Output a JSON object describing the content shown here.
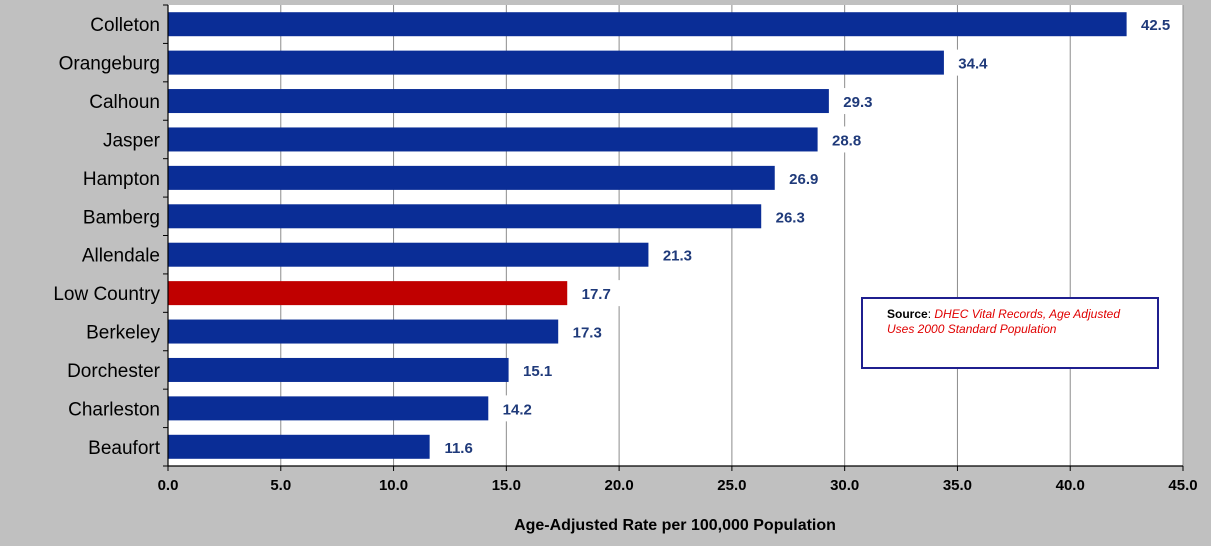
{
  "chart_data": {
    "type": "bar",
    "orientation": "horizontal",
    "categories": [
      "Colleton",
      "Orangeburg",
      "Calhoun",
      "Jasper",
      "Hampton",
      "Bamberg",
      "Allendale",
      "Low Country",
      "Berkeley",
      "Dorchester",
      "Charleston",
      "Beaufort"
    ],
    "values": [
      42.5,
      34.4,
      29.3,
      28.8,
      26.9,
      26.3,
      21.3,
      17.7,
      17.3,
      15.1,
      14.2,
      11.6
    ],
    "value_labels": [
      "42.5",
      "34.4",
      "29.3",
      "28.8",
      "26.9",
      "26.3",
      "21.3",
      "17.7",
      "17.3",
      "15.1",
      "14.2",
      "11.6"
    ],
    "highlight_category": "Low Country",
    "xlabel": "Age-Adjusted Rate per 100,000 Population",
    "xlim": [
      0,
      45
    ],
    "xticks": [
      "0.0",
      "5.0",
      "10.0",
      "15.0",
      "20.0",
      "25.0",
      "30.0",
      "35.0",
      "40.0",
      "45.0"
    ],
    "grid": "vertical",
    "colors": {
      "bar": "#0a2d96",
      "highlight": "#c00000",
      "label": "#1f3a7a",
      "plot_bg": "#ffffff",
      "page_bg": "#c0c0c0"
    }
  },
  "source": {
    "label": "Source",
    "separator": ": ",
    "text": "DHEC Vital Records, Age Adjusted Uses 2000 Standard Population"
  }
}
